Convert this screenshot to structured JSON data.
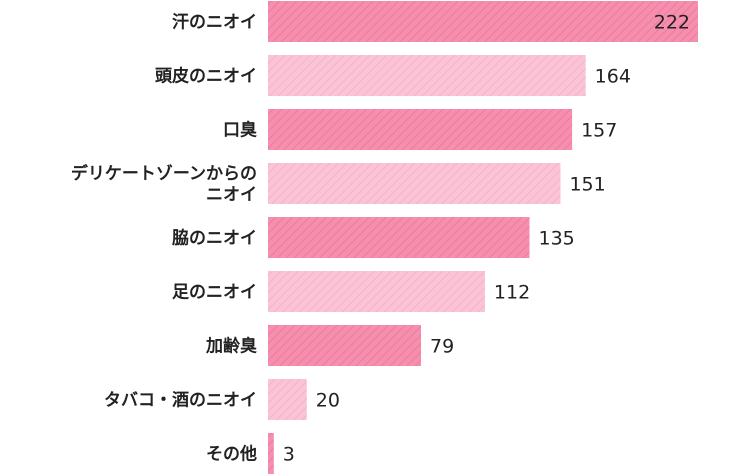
{
  "chart_data": {
    "type": "bar",
    "orientation": "horizontal",
    "categories": [
      "汗のニオイ",
      "頭皮のニオイ",
      "口臭",
      "デリケートゾーンからの\nニオイ",
      "脇のニオイ",
      "足のニオイ",
      "加齢臭",
      "タバコ・酒のニオイ",
      "その他"
    ],
    "values": [
      222,
      164,
      157,
      151,
      135,
      112,
      79,
      20,
      3
    ],
    "colors": {
      "dark_bar": "#f68fae",
      "dark_stripe": "#ec7aa0",
      "light_bar": "#fbc4d6",
      "light_stripe": "#f6b0c7",
      "label_text": "#222222",
      "value_text_on_bar": "#222222"
    },
    "bar_pattern": "alternating dark/light with diagonal stripes",
    "grid": false,
    "legend": "none"
  }
}
